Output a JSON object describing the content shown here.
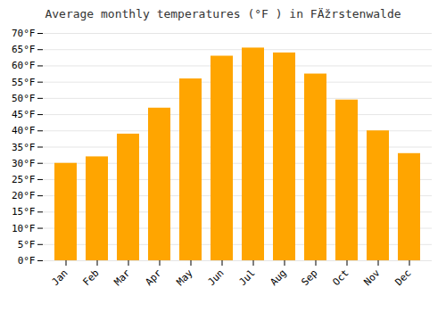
{
  "chart_data": {
    "type": "bar",
    "title": "Average monthly temperatures (°F ) in FÄžrstenwalde",
    "categories": [
      "Jan",
      "Feb",
      "Mar",
      "Apr",
      "May",
      "Jun",
      "Jul",
      "Aug",
      "Sep",
      "Oct",
      "Nov",
      "Dec"
    ],
    "values": [
      30.0,
      32.0,
      39.0,
      47.0,
      56.0,
      63.0,
      65.5,
      64.0,
      57.5,
      49.5,
      40.0,
      33.0
    ],
    "color": "#FFA500",
    "ylim": [
      0,
      70
    ],
    "yticks": [
      {
        "value": 0,
        "label": "0°F"
      },
      {
        "value": 5,
        "label": "5°F"
      },
      {
        "value": 10,
        "label": "10°F"
      },
      {
        "value": 15,
        "label": "15°F"
      },
      {
        "value": 20,
        "label": "20°F"
      },
      {
        "value": 25,
        "label": "25°F"
      },
      {
        "value": 30,
        "label": "30°F"
      },
      {
        "value": 35,
        "label": "35°F"
      },
      {
        "value": 40,
        "label": "40°F"
      },
      {
        "value": 45,
        "label": "45°F"
      },
      {
        "value": 50,
        "label": "50°F"
      },
      {
        "value": 55,
        "label": "55°F"
      },
      {
        "value": 60,
        "label": "60°F"
      },
      {
        "value": 65,
        "label": "65°F"
      },
      {
        "value": 70,
        "label": "70°F"
      }
    ],
    "grid": true
  }
}
